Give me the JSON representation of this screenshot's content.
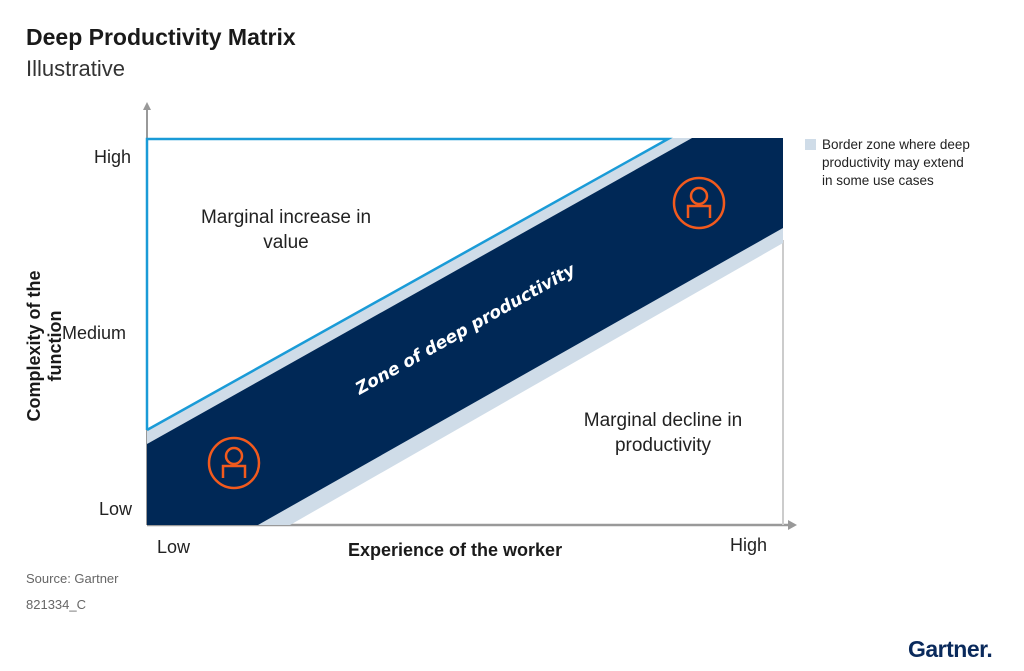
{
  "title": "Deep Productivity Matrix",
  "subtitle": "Illustrative",
  "y_axis": {
    "label": "Complexity of the function",
    "ticks": [
      "High",
      "Medium",
      "Low"
    ]
  },
  "x_axis": {
    "label": "Experience of the worker",
    "ticks": [
      "Low",
      "High"
    ]
  },
  "regions": {
    "upper": "Marginal increase in value",
    "band": "Zone of deep productivity",
    "lower": "Marginal decline in productivity"
  },
  "legend": {
    "text": "Border zone where deep productivity may extend in some use cases",
    "color": "#cfdce8"
  },
  "icons": [
    "person-icon",
    "person-icon"
  ],
  "colors": {
    "band": "#002856",
    "border_zone": "#cfdce8",
    "upper_outline": "#1a9bd7",
    "icon": "#f25a1d"
  },
  "footer": {
    "source": "Source: Gartner",
    "id": "821334_C"
  },
  "logo": "Gartner."
}
